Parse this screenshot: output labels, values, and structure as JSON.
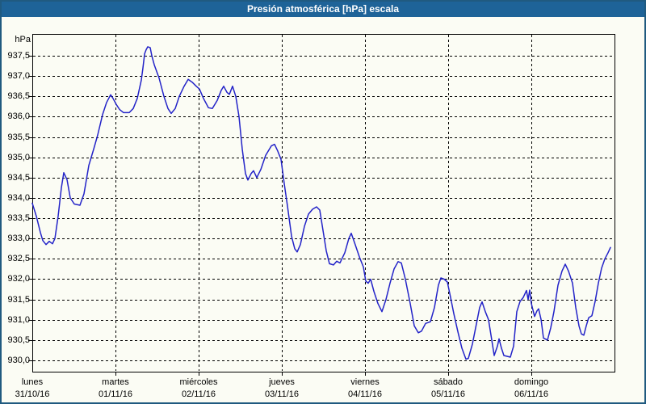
{
  "window": {
    "title": "Presión atmosférica [hPa] escala"
  },
  "colors": {
    "title_bar": "#1E6398",
    "title_text": "#FFFFFF",
    "window_border": "#205A80",
    "background": "#FBFCF4",
    "grid": "#000000",
    "axis": "#000000",
    "line": "#2323C8",
    "label_text": "#000000"
  },
  "axis": {
    "unit_label": "hPa",
    "y_tick_labels": [
      "937,5",
      "937,0",
      "936,5",
      "936,0",
      "935,5",
      "935,0",
      "934,5",
      "934,0",
      "933,5",
      "933,0",
      "932,5",
      "932,0",
      "931,5",
      "931,0",
      "930,5",
      "930,0"
    ],
    "y_tick_values": [
      937.5,
      937.0,
      936.5,
      936.0,
      935.5,
      935.0,
      934.5,
      934.0,
      933.5,
      933.0,
      932.5,
      932.0,
      931.5,
      931.0,
      930.5,
      930.0
    ]
  },
  "x_axis": {
    "days": [
      {
        "name": "lunes",
        "date": "31/10/16"
      },
      {
        "name": "martes",
        "date": "01/11/16"
      },
      {
        "name": "miércoles",
        "date": "02/11/16"
      },
      {
        "name": "jueves",
        "date": "03/11/16"
      },
      {
        "name": "viernes",
        "date": "04/11/16"
      },
      {
        "name": "sábado",
        "date": "05/11/16"
      },
      {
        "name": "domingo",
        "date": "06/11/16"
      }
    ]
  },
  "chart_data": {
    "type": "line",
    "title": "Presión atmosférica [hPa] escala",
    "ylabel": "hPa",
    "ylim": [
      929.7,
      938.1
    ],
    "y_tick_step": 0.5,
    "xlim_days": [
      0,
      7
    ],
    "x_categories": [
      "lunes 31/10/16",
      "martes 01/11/16",
      "miércoles 02/11/16",
      "jueves 03/11/16",
      "viernes 04/11/16",
      "sábado 05/11/16",
      "domingo 06/11/16"
    ],
    "grid": "dashed",
    "legend": "none",
    "series": [
      {
        "name": "Presión atmosférica [hPa]",
        "color": "#2323C8",
        "points": [
          [
            0.0,
            933.87
          ],
          [
            0.049,
            933.55
          ],
          [
            0.097,
            933.15
          ],
          [
            0.126,
            932.95
          ],
          [
            0.165,
            932.85
          ],
          [
            0.204,
            932.93
          ],
          [
            0.243,
            932.87
          ],
          [
            0.272,
            933.0
          ],
          [
            0.311,
            933.55
          ],
          [
            0.35,
            934.25
          ],
          [
            0.379,
            934.62
          ],
          [
            0.417,
            934.45
          ],
          [
            0.456,
            934.0
          ],
          [
            0.505,
            933.85
          ],
          [
            0.573,
            933.82
          ],
          [
            0.621,
            934.1
          ],
          [
            0.68,
            934.8
          ],
          [
            0.738,
            935.2
          ],
          [
            0.786,
            935.55
          ],
          [
            0.845,
            936.05
          ],
          [
            0.893,
            936.35
          ],
          [
            0.942,
            936.54
          ],
          [
            0.971,
            936.45
          ],
          [
            1.01,
            936.3
          ],
          [
            1.049,
            936.18
          ],
          [
            1.097,
            936.1
          ],
          [
            1.165,
            936.1
          ],
          [
            1.214,
            936.2
          ],
          [
            1.262,
            936.45
          ],
          [
            1.311,
            936.9
          ],
          [
            1.33,
            937.2
          ],
          [
            1.35,
            937.55
          ],
          [
            1.369,
            937.65
          ],
          [
            1.388,
            937.72
          ],
          [
            1.417,
            937.7
          ],
          [
            1.437,
            937.5
          ],
          [
            1.466,
            937.28
          ],
          [
            1.524,
            936.95
          ],
          [
            1.583,
            936.5
          ],
          [
            1.631,
            936.2
          ],
          [
            1.67,
            936.08
          ],
          [
            1.718,
            936.2
          ],
          [
            1.767,
            936.5
          ],
          [
            1.825,
            936.75
          ],
          [
            1.874,
            936.92
          ],
          [
            1.922,
            936.85
          ],
          [
            1.971,
            936.75
          ],
          [
            2.01,
            936.68
          ],
          [
            2.058,
            936.45
          ],
          [
            2.117,
            936.22
          ],
          [
            2.165,
            936.2
          ],
          [
            2.223,
            936.4
          ],
          [
            2.272,
            936.65
          ],
          [
            2.301,
            936.75
          ],
          [
            2.34,
            936.6
          ],
          [
            2.369,
            936.55
          ],
          [
            2.408,
            936.75
          ],
          [
            2.447,
            936.5
          ],
          [
            2.485,
            936.0
          ],
          [
            2.524,
            935.2
          ],
          [
            2.563,
            934.6
          ],
          [
            2.592,
            934.44
          ],
          [
            2.631,
            934.6
          ],
          [
            2.66,
            934.67
          ],
          [
            2.699,
            934.5
          ],
          [
            2.748,
            934.7
          ],
          [
            2.806,
            935.05
          ],
          [
            2.874,
            935.28
          ],
          [
            2.913,
            935.32
          ],
          [
            2.951,
            935.15
          ],
          [
            2.99,
            934.95
          ],
          [
            3.029,
            934.35
          ],
          [
            3.068,
            933.8
          ],
          [
            3.117,
            933.05
          ],
          [
            3.155,
            932.75
          ],
          [
            3.184,
            932.67
          ],
          [
            3.223,
            932.85
          ],
          [
            3.272,
            933.3
          ],
          [
            3.32,
            933.6
          ],
          [
            3.369,
            933.72
          ],
          [
            3.417,
            933.78
          ],
          [
            3.456,
            933.7
          ],
          [
            3.495,
            933.2
          ],
          [
            3.534,
            932.7
          ],
          [
            3.573,
            932.38
          ],
          [
            3.621,
            932.35
          ],
          [
            3.66,
            932.44
          ],
          [
            3.699,
            932.4
          ],
          [
            3.757,
            932.65
          ],
          [
            3.806,
            933.0
          ],
          [
            3.835,
            933.13
          ],
          [
            3.883,
            932.85
          ],
          [
            3.932,
            932.55
          ],
          [
            3.981,
            932.3
          ],
          [
            4.01,
            931.95
          ],
          [
            4.039,
            931.9
          ],
          [
            4.068,
            932.0
          ],
          [
            4.107,
            931.7
          ],
          [
            4.155,
            931.4
          ],
          [
            4.204,
            931.2
          ],
          [
            4.252,
            931.5
          ],
          [
            4.301,
            931.9
          ],
          [
            4.35,
            932.25
          ],
          [
            4.398,
            932.43
          ],
          [
            4.437,
            932.4
          ],
          [
            4.485,
            932.0
          ],
          [
            4.544,
            931.4
          ],
          [
            4.592,
            930.85
          ],
          [
            4.641,
            930.68
          ],
          [
            4.68,
            930.72
          ],
          [
            4.728,
            930.91
          ],
          [
            4.786,
            930.95
          ],
          [
            4.835,
            931.3
          ],
          [
            4.883,
            931.85
          ],
          [
            4.913,
            932.03
          ],
          [
            4.951,
            932.0
          ],
          [
            4.99,
            931.93
          ],
          [
            5.029,
            931.55
          ],
          [
            5.068,
            931.15
          ],
          [
            5.117,
            930.7
          ],
          [
            5.165,
            930.3
          ],
          [
            5.214,
            930.03
          ],
          [
            5.243,
            930.05
          ],
          [
            5.291,
            930.4
          ],
          [
            5.34,
            930.9
          ],
          [
            5.379,
            931.3
          ],
          [
            5.408,
            931.44
          ],
          [
            5.447,
            931.2
          ],
          [
            5.485,
            931.0
          ],
          [
            5.524,
            930.5
          ],
          [
            5.553,
            930.12
          ],
          [
            5.592,
            930.35
          ],
          [
            5.612,
            930.53
          ],
          [
            5.641,
            930.3
          ],
          [
            5.67,
            930.12
          ],
          [
            5.709,
            930.1
          ],
          [
            5.748,
            930.08
          ],
          [
            5.786,
            930.35
          ],
          [
            5.825,
            931.2
          ],
          [
            5.864,
            931.45
          ],
          [
            5.903,
            931.55
          ],
          [
            5.942,
            931.72
          ],
          [
            5.961,
            931.5
          ],
          [
            5.981,
            931.73
          ],
          [
            6.0,
            931.4
          ],
          [
            6.039,
            931.08
          ],
          [
            6.068,
            931.22
          ],
          [
            6.087,
            931.27
          ],
          [
            6.117,
            931.0
          ],
          [
            6.146,
            930.55
          ],
          [
            6.194,
            930.5
          ],
          [
            6.233,
            930.8
          ],
          [
            6.272,
            931.2
          ],
          [
            6.32,
            931.85
          ],
          [
            6.369,
            932.2
          ],
          [
            6.408,
            932.37
          ],
          [
            6.447,
            932.2
          ],
          [
            6.495,
            931.9
          ],
          [
            6.534,
            931.3
          ],
          [
            6.573,
            930.85
          ],
          [
            6.602,
            930.65
          ],
          [
            6.631,
            930.62
          ],
          [
            6.66,
            930.85
          ],
          [
            6.689,
            931.05
          ],
          [
            6.728,
            931.1
          ],
          [
            6.767,
            931.45
          ],
          [
            6.806,
            931.9
          ],
          [
            6.845,
            932.27
          ],
          [
            6.884,
            932.5
          ],
          [
            6.922,
            932.65
          ],
          [
            6.951,
            932.78
          ]
        ]
      }
    ]
  }
}
